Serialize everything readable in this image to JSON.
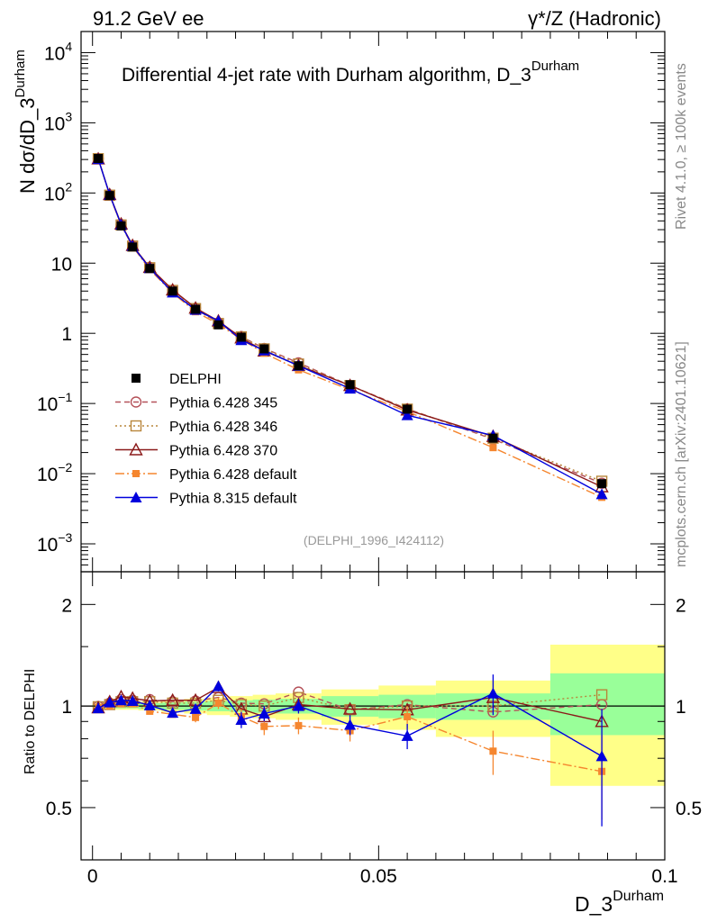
{
  "header": {
    "left": "91.2 GeV ee",
    "right": "γ*/Z (Hadronic)"
  },
  "side": {
    "rivet": "Rivet 4.1.0, ≥ 100k events",
    "mcplots": "mcplots.cern.ch [arXiv:2401.10621]"
  },
  "colors": {
    "data": "#000000",
    "p345": "#b5525a",
    "p346": "#b8863b",
    "p370": "#8b1a1a",
    "p6def": "#f5862f",
    "p8def": "#0000dd",
    "band_yellow": "#ffff88",
    "band_green": "#99ff99"
  },
  "chart_data": [
    {
      "type": "line",
      "panel": "main",
      "title": "Differential 4-jet rate with Durham algorithm, D_3",
      "title_sup": "Durham",
      "ylabel": "N  dσ/dD_3",
      "ylabel_sup": "Durham",
      "yscale": "log",
      "ylim": [
        0.0004,
        20000
      ],
      "xlim": [
        -0.002,
        0.1
      ],
      "yticks": [
        {
          "base": "10",
          "exp": "4",
          "value": 10000
        },
        {
          "base": "10",
          "exp": "3",
          "value": 1000
        },
        {
          "base": "10",
          "exp": "2",
          "value": 100
        },
        {
          "base": "10",
          "exp": "",
          "value": 10
        },
        {
          "base": "1",
          "exp": "",
          "value": 1
        },
        {
          "base": "10",
          "exp": "−1",
          "value": 0.1
        },
        {
          "base": "10",
          "exp": "−2",
          "value": 0.01
        },
        {
          "base": "10",
          "exp": "−3",
          "value": 0.001
        }
      ],
      "watermark": "(DELPHI_1996_I424112)",
      "x": [
        0.001,
        0.003,
        0.005,
        0.007,
        0.01,
        0.014,
        0.018,
        0.022,
        0.026,
        0.03,
        0.036,
        0.045,
        0.055,
        0.07,
        0.089
      ],
      "data": {
        "name": "DELPHI",
        "values": [
          310,
          92,
          34,
          17,
          8.4,
          4.0,
          2.2,
          1.32,
          0.88,
          0.6,
          0.345,
          0.185,
          0.083,
          0.032,
          0.0072
        ]
      },
      "series": [
        {
          "name": "Pythia 6.428 345",
          "key": "p345",
          "marker": "open-circle",
          "dash": "6,4",
          "values": [
            309,
            94,
            35.5,
            17.7,
            8.75,
            4.12,
            2.28,
            1.4,
            0.9,
            0.61,
            0.38,
            0.18,
            0.084,
            0.031,
            0.0073
          ]
        },
        {
          "name": "Pythia 6.428 346",
          "key": "p346",
          "marker": "open-square",
          "dash": "2,3",
          "values": [
            308,
            93,
            35.0,
            17.5,
            8.6,
            4.08,
            2.25,
            1.38,
            0.89,
            0.6,
            0.365,
            0.18,
            0.083,
            0.032,
            0.0078
          ]
        },
        {
          "name": "Pythia 6.428 370",
          "key": "p370",
          "marker": "open-triangle",
          "dash": "",
          "values": [
            306,
            95,
            36.2,
            17.9,
            8.7,
            4.16,
            2.29,
            1.5,
            0.86,
            0.56,
            0.348,
            0.181,
            0.081,
            0.034,
            0.0065
          ]
        },
        {
          "name": "Pythia 6.428 default",
          "key": "p6def",
          "marker": "filled-square",
          "dash": "10,3,2,3",
          "values": [
            307,
            92,
            34.5,
            17.3,
            8.1,
            3.78,
            2.03,
            1.35,
            0.82,
            0.52,
            0.302,
            0.157,
            0.077,
            0.0235,
            0.0046
          ]
        },
        {
          "name": "Pythia 8.315 default",
          "key": "p8def",
          "marker": "filled-triangle",
          "dash": "",
          "values": [
            305,
            94,
            35.4,
            17.6,
            8.5,
            3.82,
            2.16,
            1.51,
            0.8,
            0.57,
            0.345,
            0.163,
            0.068,
            0.035,
            0.0051
          ]
        }
      ]
    },
    {
      "type": "line",
      "panel": "ratio",
      "ylabel": "Ratio to DELPHI",
      "xlabel": "D_3",
      "xlabel_sup": "Durham",
      "ylim": [
        0.35,
        2.5
      ],
      "xlim": [
        -0.002,
        0.1
      ],
      "yticks": [
        {
          "label": "0.5",
          "value": 0.5
        },
        {
          "label": "1",
          "value": 1
        },
        {
          "label": "2",
          "value": 2
        }
      ],
      "xticks": [
        {
          "label": "0",
          "value": 0
        },
        {
          "label": "0.05",
          "value": 0.05
        },
        {
          "label": "0.1",
          "value": 0.1
        }
      ],
      "x": [
        0.001,
        0.003,
        0.005,
        0.007,
        0.01,
        0.014,
        0.018,
        0.022,
        0.026,
        0.03,
        0.036,
        0.045,
        0.055,
        0.07,
        0.089
      ],
      "bands": {
        "edges": [
          0.0,
          0.002,
          0.004,
          0.006,
          0.008,
          0.012,
          0.016,
          0.02,
          0.024,
          0.028,
          0.032,
          0.04,
          0.05,
          0.06,
          0.08,
          0.1
        ],
        "yellow": [
          [
            0.98,
            1.02
          ],
          [
            0.98,
            1.02
          ],
          [
            0.975,
            1.025
          ],
          [
            0.975,
            1.025
          ],
          [
            0.97,
            1.03
          ],
          [
            0.96,
            1.04
          ],
          [
            0.95,
            1.05
          ],
          [
            0.94,
            1.06
          ],
          [
            0.93,
            1.07
          ],
          [
            0.92,
            1.08
          ],
          [
            0.91,
            1.09
          ],
          [
            0.88,
            1.12
          ],
          [
            0.85,
            1.15
          ],
          [
            0.81,
            1.19
          ],
          [
            0.58,
            1.52
          ]
        ],
        "green": [
          [
            0.99,
            1.01
          ],
          [
            0.99,
            1.01
          ],
          [
            0.985,
            1.015
          ],
          [
            0.985,
            1.015
          ],
          [
            0.98,
            1.02
          ],
          [
            0.975,
            1.025
          ],
          [
            0.97,
            1.03
          ],
          [
            0.965,
            1.035
          ],
          [
            0.96,
            1.04
          ],
          [
            0.955,
            1.045
          ],
          [
            0.95,
            1.05
          ],
          [
            0.93,
            1.07
          ],
          [
            0.92,
            1.08
          ],
          [
            0.91,
            1.09
          ],
          [
            0.82,
            1.25
          ]
        ]
      },
      "series": [
        {
          "key": "p345",
          "marker": "open-circle",
          "dash": "6,4",
          "values": [
            0.997,
            1.02,
            1.045,
            1.04,
            1.045,
            1.03,
            1.035,
            1.06,
            1.02,
            1.015,
            1.1,
            0.975,
            1.01,
            0.96,
            1.01
          ]
        },
        {
          "key": "p346",
          "marker": "open-square",
          "dash": "2,3",
          "values": [
            0.995,
            1.01,
            1.03,
            1.03,
            1.03,
            1.02,
            1.02,
            1.04,
            1.01,
            1.0,
            1.06,
            0.975,
            1.0,
            1.0,
            1.08
          ]
        },
        {
          "key": "p370",
          "marker": "open-triangle",
          "dash": "",
          "values": [
            0.988,
            1.03,
            1.065,
            1.055,
            1.035,
            1.04,
            1.04,
            1.135,
            0.98,
            0.93,
            1.01,
            0.98,
            0.975,
            1.06,
            0.9
          ]
        },
        {
          "key": "p6def",
          "marker": "filled-square",
          "dash": "10,3,2,3",
          "values": [
            0.99,
            1.0,
            1.015,
            1.015,
            0.965,
            0.945,
            0.925,
            1.02,
            0.93,
            0.87,
            0.875,
            0.845,
            0.93,
            0.735,
            0.64
          ],
          "errors": [
            0.01,
            0.01,
            0.015,
            0.015,
            0.02,
            0.02,
            0.03,
            0.04,
            0.05,
            0.05,
            0.05,
            0.06,
            0.07,
            0.11,
            0.18
          ]
        },
        {
          "key": "p8def",
          "marker": "filled-triangle",
          "dash": "",
          "values": [
            0.985,
            1.025,
            1.04,
            1.035,
            1.005,
            0.955,
            0.98,
            1.145,
            0.91,
            0.95,
            1.0,
            0.88,
            0.815,
            1.09,
            0.71
          ],
          "errors": [
            0.01,
            0.01,
            0.015,
            0.015,
            0.02,
            0.02,
            0.03,
            0.04,
            0.05,
            0.05,
            0.05,
            0.06,
            0.07,
            0.15,
            0.27
          ]
        }
      ]
    }
  ]
}
